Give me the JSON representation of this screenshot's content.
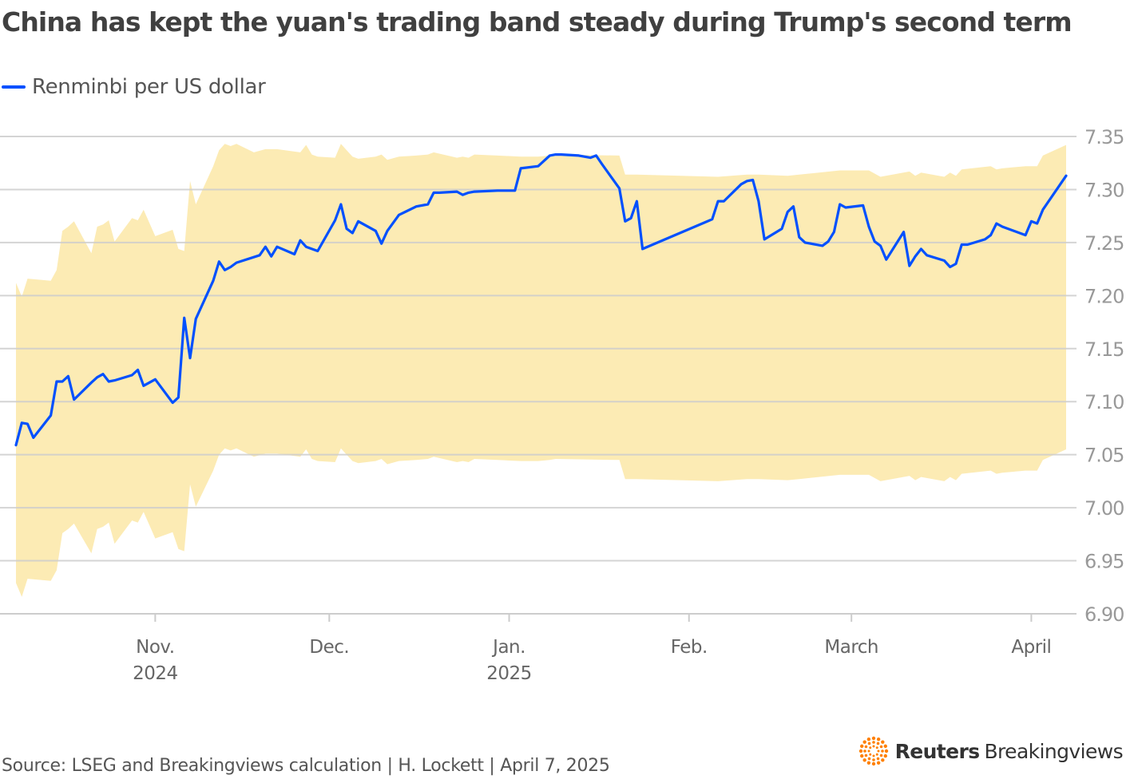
{
  "title": "China has kept the yuan's trading band steady during Trump's second term",
  "source": "Source: LSEG and Breakingviews calculation | H. Lockett | April 7, 2025",
  "brand": {
    "name_bold": "Reuters",
    "name_light": "Breakingviews"
  },
  "colors": {
    "line": "#0050ff",
    "band": "#fcebb4",
    "grid": "#cccccc",
    "brand_logo": "#ff8000"
  },
  "chart_data": {
    "type": "line",
    "title": "China has kept the yuan's trading band steady during Trump's second term",
    "ylim": [
      6.9,
      7.35
    ],
    "y_ticks": [
      "7.35",
      "7.30",
      "7.25",
      "7.20",
      "7.15",
      "7.10",
      "7.05",
      "7.00",
      "6.95",
      "6.90"
    ],
    "x_range": [
      "2024-10-08",
      "2025-04-07"
    ],
    "x_ticks": [
      {
        "date": "2024-11-01",
        "label": "Nov.",
        "sublabel": "2024"
      },
      {
        "date": "2024-12-01",
        "label": "Dec.",
        "sublabel": ""
      },
      {
        "date": "2025-01-01",
        "label": "Jan.",
        "sublabel": "2025"
      },
      {
        "date": "2025-02-01",
        "label": "Feb.",
        "sublabel": ""
      },
      {
        "date": "2025-03-01",
        "label": "March",
        "sublabel": ""
      },
      {
        "date": "2025-04-01",
        "label": "April",
        "sublabel": ""
      }
    ],
    "grid": true,
    "legend_position": "top-left",
    "series": [
      {
        "name": "Renminbi per US dollar",
        "points": [
          [
            "2024-10-08",
            7.059
          ],
          [
            "2024-10-09",
            7.08
          ],
          [
            "2024-10-10",
            7.079
          ],
          [
            "2024-10-11",
            7.066
          ],
          [
            "2024-10-14",
            7.087
          ],
          [
            "2024-10-15",
            7.119
          ],
          [
            "2024-10-16",
            7.119
          ],
          [
            "2024-10-17",
            7.124
          ],
          [
            "2024-10-18",
            7.102
          ],
          [
            "2024-10-21",
            7.118
          ],
          [
            "2024-10-22",
            7.123
          ],
          [
            "2024-10-23",
            7.126
          ],
          [
            "2024-10-24",
            7.119
          ],
          [
            "2024-10-25",
            7.12
          ],
          [
            "2024-10-28",
            7.125
          ],
          [
            "2024-10-29",
            7.13
          ],
          [
            "2024-10-30",
            7.115
          ],
          [
            "2024-11-01",
            7.121
          ],
          [
            "2024-11-04",
            7.099
          ],
          [
            "2024-11-05",
            7.104
          ],
          [
            "2024-11-06",
            7.179
          ],
          [
            "2024-11-07",
            7.141
          ],
          [
            "2024-11-08",
            7.178
          ],
          [
            "2024-11-11",
            7.214
          ],
          [
            "2024-11-12",
            7.232
          ],
          [
            "2024-11-13",
            7.224
          ],
          [
            "2024-11-14",
            7.227
          ],
          [
            "2024-11-15",
            7.231
          ],
          [
            "2024-11-19",
            7.238
          ],
          [
            "2024-11-20",
            7.246
          ],
          [
            "2024-11-21",
            7.237
          ],
          [
            "2024-11-22",
            7.246
          ],
          [
            "2024-11-25",
            7.239
          ],
          [
            "2024-11-26",
            7.252
          ],
          [
            "2024-11-27",
            7.246
          ],
          [
            "2024-11-29",
            7.242
          ],
          [
            "2024-12-02",
            7.271
          ],
          [
            "2024-12-03",
            7.286
          ],
          [
            "2024-12-04",
            7.263
          ],
          [
            "2024-12-05",
            7.259
          ],
          [
            "2024-12-06",
            7.27
          ],
          [
            "2024-12-09",
            7.261
          ],
          [
            "2024-12-10",
            7.249
          ],
          [
            "2024-12-11",
            7.261
          ],
          [
            "2024-12-13",
            7.276
          ],
          [
            "2024-12-16",
            7.284
          ],
          [
            "2024-12-18",
            7.286
          ],
          [
            "2024-12-19",
            7.297
          ],
          [
            "2024-12-20",
            7.297
          ],
          [
            "2024-12-23",
            7.298
          ],
          [
            "2024-12-24",
            7.295
          ],
          [
            "2024-12-25",
            7.297
          ],
          [
            "2024-12-26",
            7.298
          ],
          [
            "2024-12-30",
            7.299
          ],
          [
            "2025-01-02",
            7.299
          ],
          [
            "2025-01-03",
            7.32
          ],
          [
            "2025-01-06",
            7.322
          ],
          [
            "2025-01-08",
            7.332
          ],
          [
            "2025-01-09",
            7.333
          ],
          [
            "2025-01-10",
            7.333
          ],
          [
            "2025-01-13",
            7.332
          ],
          [
            "2025-01-15",
            7.33
          ],
          [
            "2025-01-16",
            7.332
          ],
          [
            "2025-01-17",
            7.324
          ],
          [
            "2025-01-20",
            7.301
          ],
          [
            "2025-01-21",
            7.27
          ],
          [
            "2025-01-22",
            7.273
          ],
          [
            "2025-01-23",
            7.289
          ],
          [
            "2025-01-24",
            7.244
          ],
          [
            "2025-02-05",
            7.272
          ],
          [
            "2025-02-06",
            7.289
          ],
          [
            "2025-02-07",
            7.289
          ],
          [
            "2025-02-10",
            7.305
          ],
          [
            "2025-02-11",
            7.308
          ],
          [
            "2025-02-12",
            7.309
          ],
          [
            "2025-02-13",
            7.289
          ],
          [
            "2025-02-14",
            7.253
          ],
          [
            "2025-02-17",
            7.263
          ],
          [
            "2025-02-18",
            7.279
          ],
          [
            "2025-02-19",
            7.284
          ],
          [
            "2025-02-20",
            7.255
          ],
          [
            "2025-02-21",
            7.25
          ],
          [
            "2025-02-24",
            7.247
          ],
          [
            "2025-02-25",
            7.251
          ],
          [
            "2025-02-26",
            7.26
          ],
          [
            "2025-02-27",
            7.286
          ],
          [
            "2025-02-28",
            7.283
          ],
          [
            "2025-03-03",
            7.285
          ],
          [
            "2025-03-04",
            7.265
          ],
          [
            "2025-03-05",
            7.251
          ],
          [
            "2025-03-06",
            7.247
          ],
          [
            "2025-03-07",
            7.234
          ],
          [
            "2025-03-10",
            7.26
          ],
          [
            "2025-03-11",
            7.228
          ],
          [
            "2025-03-12",
            7.237
          ],
          [
            "2025-03-13",
            7.244
          ],
          [
            "2025-03-14",
            7.238
          ],
          [
            "2025-03-17",
            7.233
          ],
          [
            "2025-03-18",
            7.227
          ],
          [
            "2025-03-19",
            7.23
          ],
          [
            "2025-03-20",
            7.248
          ],
          [
            "2025-03-21",
            7.248
          ],
          [
            "2025-03-24",
            7.253
          ],
          [
            "2025-03-25",
            7.257
          ],
          [
            "2025-03-26",
            7.268
          ],
          [
            "2025-03-27",
            7.265
          ],
          [
            "2025-03-31",
            7.257
          ],
          [
            "2025-04-01",
            7.27
          ],
          [
            "2025-04-02",
            7.268
          ],
          [
            "2025-04-03",
            7.281
          ],
          [
            "2025-04-07",
            7.313
          ]
        ]
      }
    ],
    "band": [
      [
        "2024-10-08",
        6.929,
        7.212
      ],
      [
        "2024-10-09",
        6.916,
        7.199
      ],
      [
        "2024-10-10",
        6.933,
        7.216
      ],
      [
        "2024-10-14",
        6.931,
        7.214
      ],
      [
        "2024-10-15",
        6.941,
        7.224
      ],
      [
        "2024-10-16",
        6.976,
        7.261
      ],
      [
        "2024-10-17",
        6.98,
        7.265
      ],
      [
        "2024-10-18",
        6.985,
        7.27
      ],
      [
        "2024-10-21",
        6.957,
        7.24
      ],
      [
        "2024-10-22",
        6.98,
        7.265
      ],
      [
        "2024-10-23",
        6.982,
        7.267
      ],
      [
        "2024-10-24",
        6.986,
        7.271
      ],
      [
        "2024-10-25",
        6.966,
        7.251
      ],
      [
        "2024-10-28",
        6.988,
        7.273
      ],
      [
        "2024-10-29",
        6.986,
        7.271
      ],
      [
        "2024-10-30",
        6.996,
        7.281
      ],
      [
        "2024-11-01",
        6.971,
        7.256
      ],
      [
        "2024-11-04",
        6.977,
        7.262
      ],
      [
        "2024-11-05",
        6.961,
        7.244
      ],
      [
        "2024-11-06",
        6.959,
        7.242
      ],
      [
        "2024-11-07",
        7.022,
        7.308
      ],
      [
        "2024-11-08",
        7.001,
        7.286
      ],
      [
        "2024-11-11",
        7.035,
        7.322
      ],
      [
        "2024-11-12",
        7.05,
        7.337
      ],
      [
        "2024-11-13",
        7.056,
        7.343
      ],
      [
        "2024-11-14",
        7.054,
        7.341
      ],
      [
        "2024-11-15",
        7.056,
        7.343
      ],
      [
        "2024-11-18",
        7.048,
        7.335
      ],
      [
        "2024-11-20",
        7.051,
        7.338
      ],
      [
        "2024-11-22",
        7.051,
        7.338
      ],
      [
        "2024-11-26",
        7.048,
        7.335
      ],
      [
        "2024-11-27",
        7.055,
        7.342
      ],
      [
        "2024-11-28",
        7.046,
        7.333
      ],
      [
        "2024-11-29",
        7.044,
        7.331
      ],
      [
        "2024-12-02",
        7.043,
        7.33
      ],
      [
        "2024-12-03",
        7.056,
        7.343
      ],
      [
        "2024-12-04",
        7.05,
        7.337
      ],
      [
        "2024-12-05",
        7.044,
        7.331
      ],
      [
        "2024-12-06",
        7.042,
        7.329
      ],
      [
        "2024-12-09",
        7.044,
        7.331
      ],
      [
        "2024-12-10",
        7.046,
        7.333
      ],
      [
        "2024-12-11",
        7.041,
        7.328
      ],
      [
        "2024-12-13",
        7.044,
        7.331
      ],
      [
        "2024-12-16",
        7.045,
        7.332
      ],
      [
        "2024-12-18",
        7.046,
        7.333
      ],
      [
        "2024-12-19",
        7.048,
        7.335
      ],
      [
        "2024-12-23",
        7.043,
        7.33
      ],
      [
        "2024-12-24",
        7.044,
        7.331
      ],
      [
        "2024-12-25",
        7.043,
        7.33
      ],
      [
        "2024-12-26",
        7.046,
        7.333
      ],
      [
        "2024-12-30",
        7.045,
        7.332
      ],
      [
        "2025-01-03",
        7.044,
        7.331
      ],
      [
        "2025-01-06",
        7.044,
        7.331
      ],
      [
        "2025-01-08",
        7.045,
        7.332
      ],
      [
        "2025-01-09",
        7.046,
        7.333
      ],
      [
        "2025-01-20",
        7.045,
        7.332
      ],
      [
        "2025-01-21",
        7.027,
        7.314
      ],
      [
        "2025-01-23",
        7.027,
        7.314
      ],
      [
        "2025-02-06",
        7.025,
        7.312
      ],
      [
        "2025-02-11",
        7.027,
        7.314
      ],
      [
        "2025-02-13",
        7.027,
        7.314
      ],
      [
        "2025-02-18",
        7.026,
        7.313
      ],
      [
        "2025-02-20",
        7.027,
        7.314
      ],
      [
        "2025-02-27",
        7.031,
        7.318
      ],
      [
        "2025-03-04",
        7.031,
        7.318
      ],
      [
        "2025-03-06",
        7.025,
        7.312
      ],
      [
        "2025-03-11",
        7.03,
        7.317
      ],
      [
        "2025-03-12",
        7.026,
        7.313
      ],
      [
        "2025-03-13",
        7.029,
        7.316
      ],
      [
        "2025-03-17",
        7.025,
        7.312
      ],
      [
        "2025-03-18",
        7.029,
        7.316
      ],
      [
        "2025-03-19",
        7.026,
        7.313
      ],
      [
        "2025-03-20",
        7.032,
        7.319
      ],
      [
        "2025-03-25",
        7.035,
        7.322
      ],
      [
        "2025-03-26",
        7.032,
        7.319
      ],
      [
        "2025-03-27",
        7.033,
        7.32
      ],
      [
        "2025-03-31",
        7.035,
        7.322
      ],
      [
        "2025-04-02",
        7.035,
        7.322
      ],
      [
        "2025-04-03",
        7.045,
        7.332
      ],
      [
        "2025-04-07",
        7.055,
        7.342
      ]
    ]
  }
}
